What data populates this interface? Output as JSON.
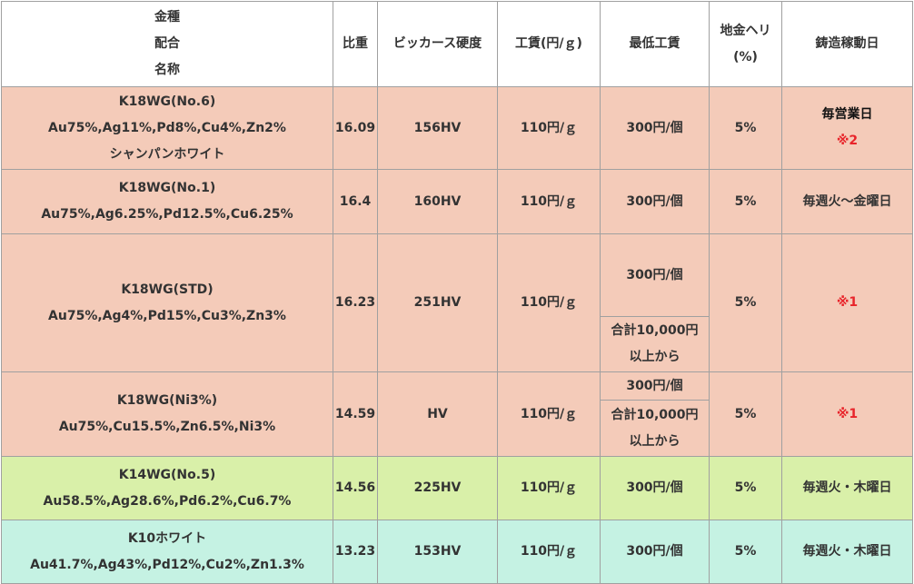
{
  "header": {
    "metal": [
      "金種",
      "配合",
      "名称"
    ],
    "gravity": "比重",
    "hardness": "ビッカース硬度",
    "wage": "工賃(円/ｇ)",
    "min_wage": "最低工賃",
    "loss": [
      "地金ヘリ",
      "(%)"
    ],
    "days": "鋳造稼動日"
  },
  "rows": [
    {
      "name": [
        "K18WG(No.6)",
        "Au75%,Ag11%,Pd8%,Cu4%,Zn2%",
        "シャンパンホワイト"
      ],
      "gravity": "16.09",
      "hardness": "156HV",
      "wage": "110円/ｇ",
      "min_wage": [
        "300円/個"
      ],
      "loss": "5%",
      "days": [
        "毎営業日",
        "※2"
      ]
    },
    {
      "name": [
        "K18WG(No.1)",
        "Au75%,Ag6.25%,Pd12.5%,Cu6.25%"
      ],
      "gravity": "16.4",
      "hardness": "160HV",
      "wage": "110円/ｇ",
      "min_wage": [
        "300円/個"
      ],
      "loss": "5%",
      "days": [
        "毎週火～金曜日"
      ]
    },
    {
      "name": [
        "K18WG(STD)",
        "Au75%,Ag4%,Pd15%,Cu3%,Zn3%"
      ],
      "gravity": "16.23",
      "hardness": "251HV",
      "wage": "110円/ｇ",
      "min_wage": [
        "300円/個",
        "合計10,000円",
        "以上から"
      ],
      "loss": "5%",
      "days": [
        "※1"
      ]
    },
    {
      "name": [
        "K18WG(Ni3%)",
        "Au75%,Cu15.5%,Zn6.5%,Ni3%"
      ],
      "gravity": "14.59",
      "hardness": "HV",
      "wage": "110円/ｇ",
      "min_wage": [
        "300円/個",
        "合計10,000円",
        "以上から"
      ],
      "loss": "5%",
      "days": [
        "※1"
      ]
    },
    {
      "name": [
        "K14WG(No.5)",
        "Au58.5%,Ag28.6%,Pd6.2%,Cu6.7%"
      ],
      "gravity": "14.56",
      "hardness": "225HV",
      "wage": "110円/ｇ",
      "min_wage": [
        "300円/個"
      ],
      "loss": "5%",
      "days": [
        "毎週火・木曜日"
      ]
    },
    {
      "name": [
        "K10ホワイト",
        "Au41.7%,Ag43%,Pd12%,Cu2%,Zn1.3%"
      ],
      "gravity": "13.23",
      "hardness": "153HV",
      "wage": "110円/ｇ",
      "min_wage": [
        "300円/個"
      ],
      "loss": "5%",
      "days": [
        "毎週火・木曜日"
      ]
    }
  ]
}
